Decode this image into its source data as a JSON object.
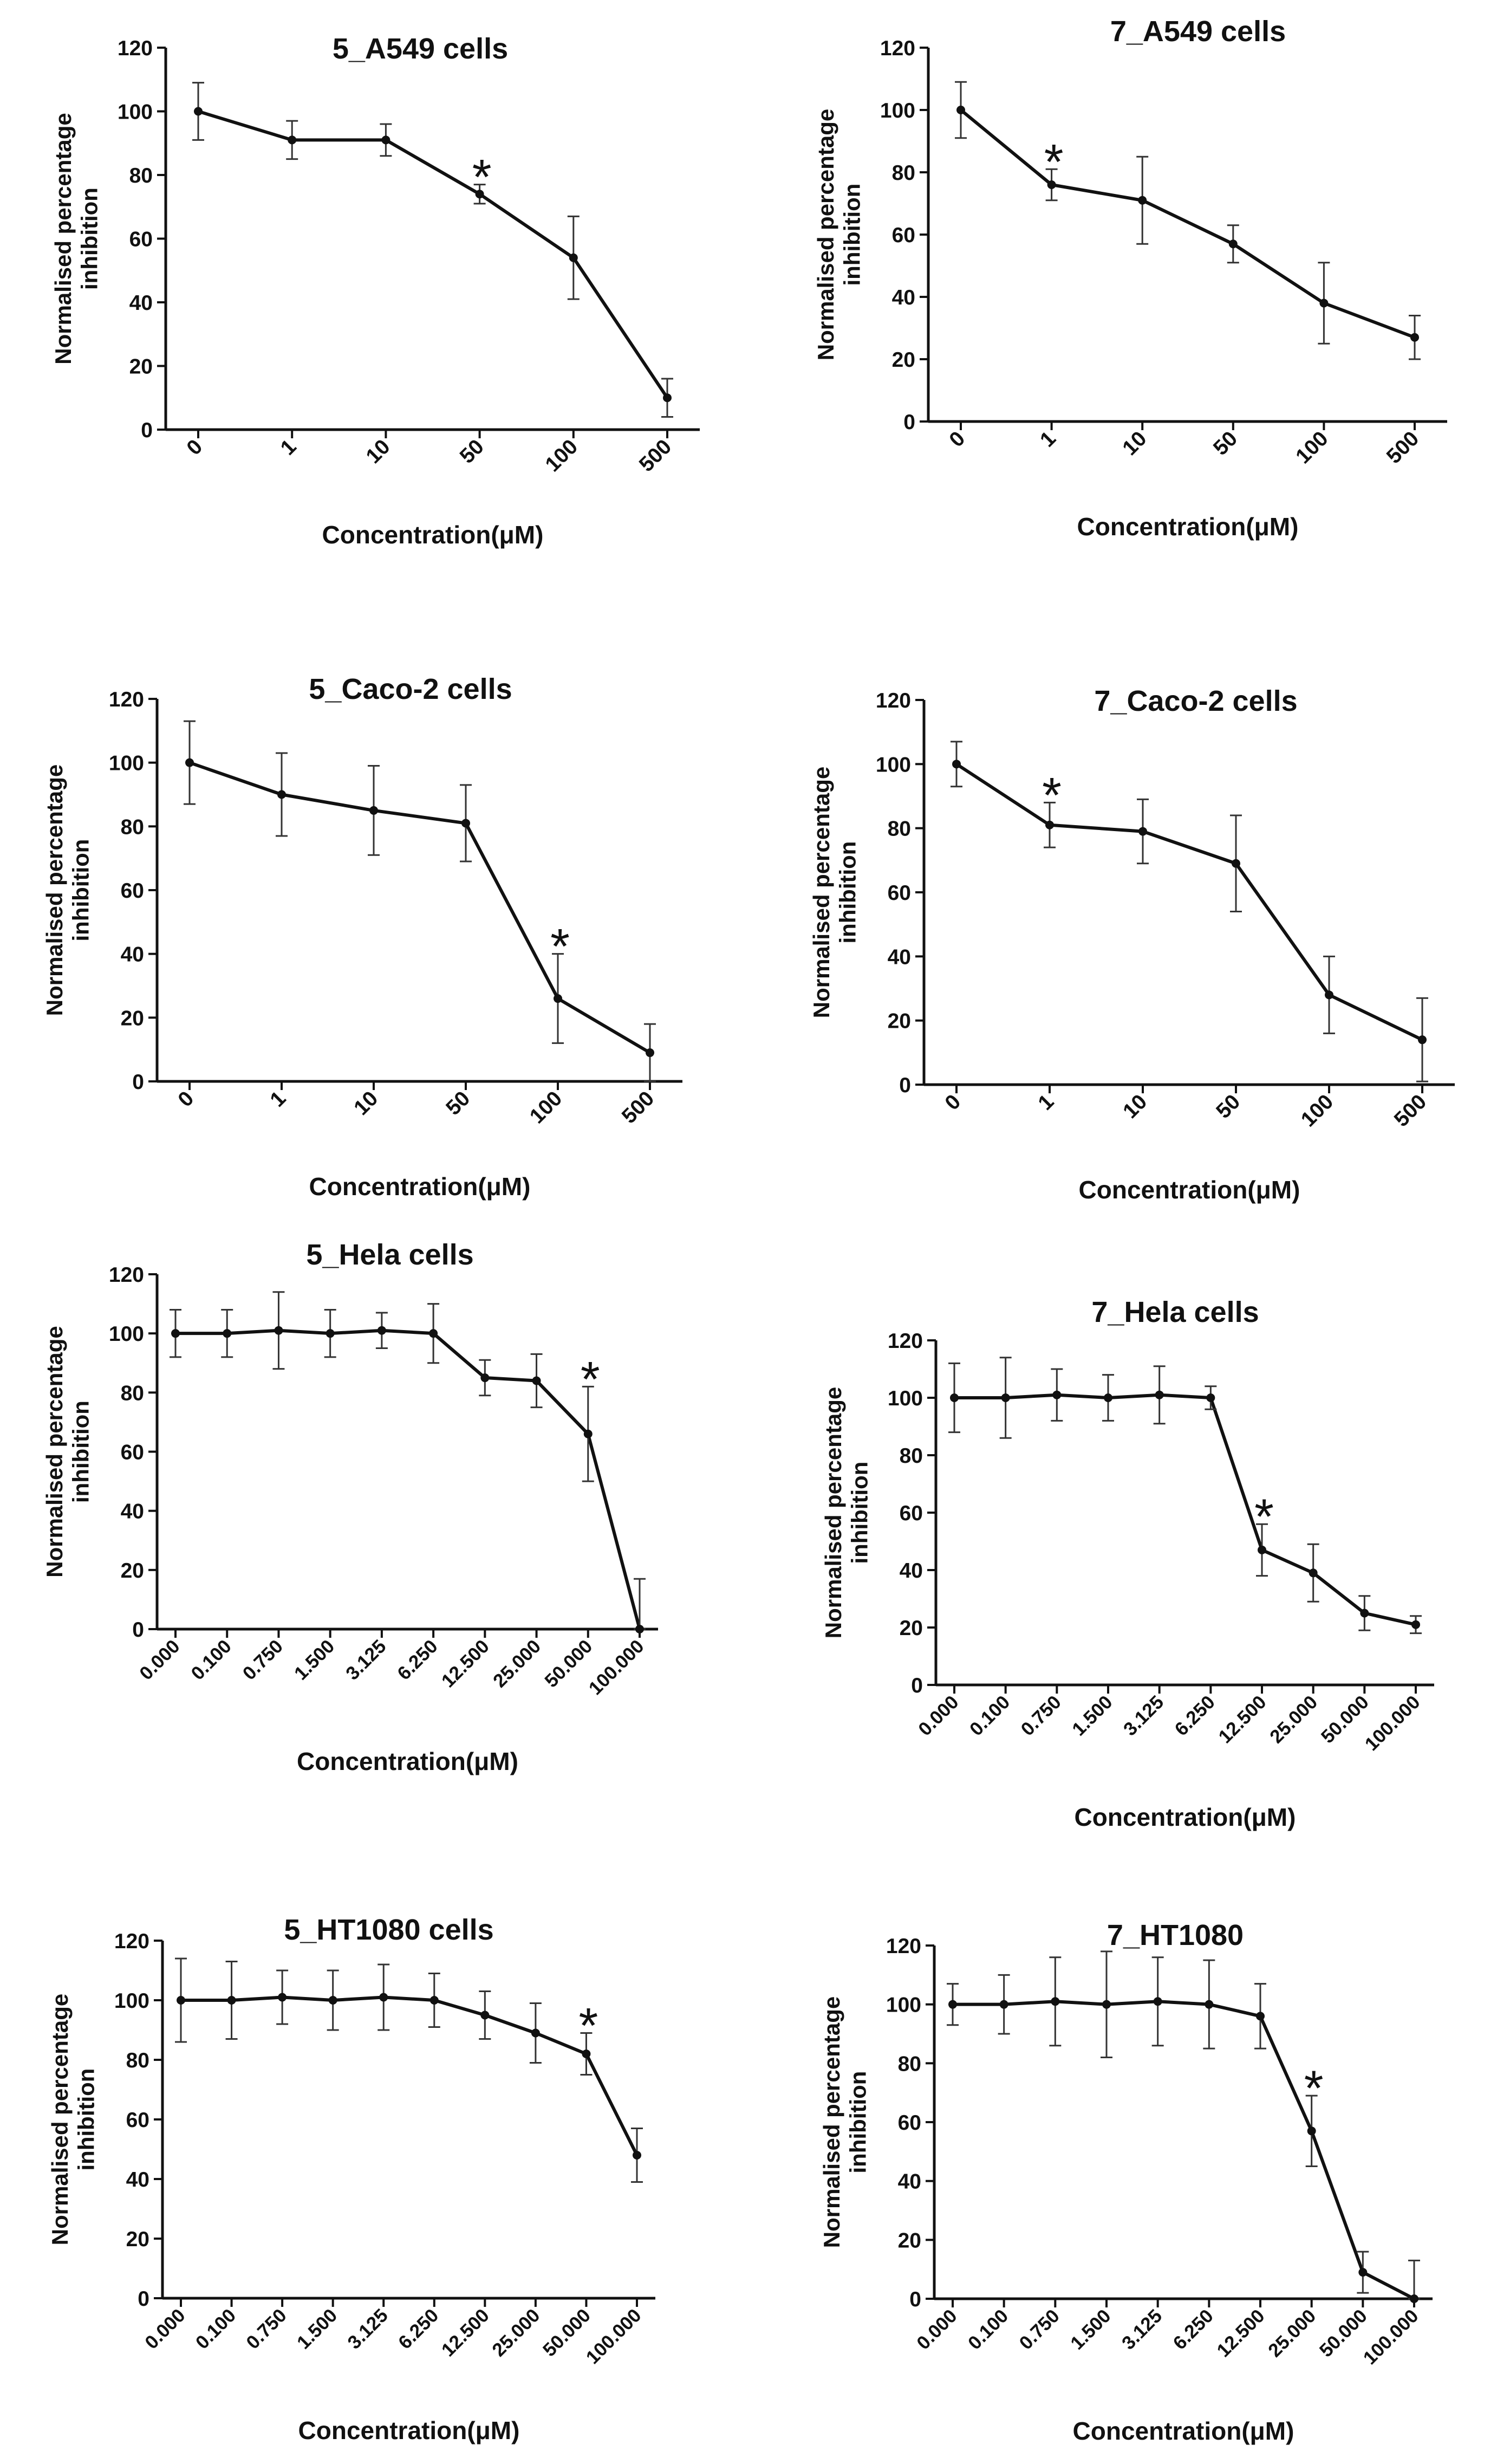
{
  "colors": {
    "line": "#111111",
    "errorbar": "#333333",
    "background": "#ffffff"
  },
  "chart_data": [
    {
      "type": "line",
      "title": "5_A549 cells",
      "xlabel": "Concentration(μM)",
      "ylabel": [
        "Normalised percentage",
        "inhibition"
      ],
      "ylim": [
        0,
        120
      ],
      "yticks": [
        0,
        20,
        40,
        60,
        80,
        100,
        120
      ],
      "categories": [
        "0",
        "1",
        "10",
        "50",
        "100",
        "500"
      ],
      "series": [
        {
          "values": [
            100,
            91,
            91,
            74,
            54,
            10
          ],
          "errors": [
            9,
            6,
            5,
            3,
            13,
            6
          ]
        }
      ],
      "significance": {
        "marker": "*",
        "category": "50"
      }
    },
    {
      "type": "line",
      "title": "7_A549 cells",
      "xlabel": "Concentration(μM)",
      "ylabel": [
        "Normalised percentage",
        "inhibition"
      ],
      "ylim": [
        0,
        120
      ],
      "yticks": [
        0,
        20,
        40,
        60,
        80,
        100,
        120
      ],
      "categories": [
        "0",
        "1",
        "10",
        "50",
        "100",
        "500"
      ],
      "series": [
        {
          "values": [
            100,
            76,
            71,
            57,
            38,
            27
          ],
          "errors": [
            9,
            5,
            14,
            6,
            13,
            7
          ]
        }
      ],
      "significance": {
        "marker": "*",
        "category": "1"
      }
    },
    {
      "type": "line",
      "title": "5_Caco-2 cells",
      "xlabel": "Concentration(μM)",
      "ylabel": [
        "Normalised percentage",
        "inhibition"
      ],
      "ylim": [
        0,
        120
      ],
      "yticks": [
        0,
        20,
        40,
        60,
        80,
        100,
        120
      ],
      "categories": [
        "0",
        "1",
        "10",
        "50",
        "100",
        "500"
      ],
      "series": [
        {
          "values": [
            100,
            90,
            85,
            81,
            26,
            9
          ],
          "errors": [
            13,
            13,
            14,
            12,
            14,
            9
          ]
        }
      ],
      "significance": {
        "marker": "*",
        "category": "100"
      }
    },
    {
      "type": "line",
      "title": "7_Caco-2 cells",
      "xlabel": "Concentration(μM)",
      "ylabel": [
        "Normalised percentage",
        "inhibition"
      ],
      "ylim": [
        0,
        120
      ],
      "yticks": [
        0,
        20,
        40,
        60,
        80,
        100,
        120
      ],
      "categories": [
        "0",
        "1",
        "10",
        "50",
        "100",
        "500"
      ],
      "series": [
        {
          "values": [
            100,
            81,
            79,
            69,
            28,
            14
          ],
          "errors": [
            7,
            7,
            10,
            15,
            12,
            13
          ]
        }
      ],
      "significance": {
        "marker": "*",
        "category": "1"
      }
    },
    {
      "type": "line",
      "title": "5_Hela cells",
      "xlabel": "Concentration(μM)",
      "ylabel": [
        "Normalised percentage",
        "inhibition"
      ],
      "ylim": [
        0,
        120
      ],
      "yticks": [
        0,
        20,
        40,
        60,
        80,
        100,
        120
      ],
      "categories": [
        "0.000",
        "0.100",
        "0.750",
        "1.500",
        "3.125",
        "6.250",
        "12.500",
        "25.000",
        "50.000",
        "100.000"
      ],
      "series": [
        {
          "values": [
            100,
            100,
            101,
            100,
            101,
            100,
            85,
            84,
            66,
            0
          ],
          "errors": [
            8,
            8,
            13,
            8,
            6,
            10,
            6,
            9,
            16,
            17
          ]
        }
      ],
      "significance": {
        "marker": "*",
        "category": "50.000"
      }
    },
    {
      "type": "line",
      "title": "7_Hela cells",
      "xlabel": "Concentration(μM)",
      "ylabel": [
        "Normalised percentage",
        "inhibition"
      ],
      "ylim": [
        0,
        120
      ],
      "yticks": [
        0,
        20,
        40,
        60,
        80,
        100,
        120
      ],
      "categories": [
        "0.000",
        "0.100",
        "0.750",
        "1.500",
        "3.125",
        "6.250",
        "12.500",
        "25.000",
        "50.000",
        "100.000"
      ],
      "series": [
        {
          "values": [
            100,
            100,
            101,
            100,
            101,
            100,
            47,
            39,
            25,
            21
          ],
          "errors": [
            12,
            14,
            9,
            8,
            10,
            4,
            9,
            10,
            6,
            3
          ]
        }
      ],
      "significance": {
        "marker": "*",
        "category": "12.500"
      }
    },
    {
      "type": "line",
      "title": "5_HT1080 cells",
      "xlabel": "Concentration(μM)",
      "ylabel": [
        "Normalised percentage",
        "inhibition"
      ],
      "ylim": [
        0,
        120
      ],
      "yticks": [
        0,
        20,
        40,
        60,
        80,
        100,
        120
      ],
      "categories": [
        "0.000",
        "0.100",
        "0.750",
        "1.500",
        "3.125",
        "6.250",
        "12.500",
        "25.000",
        "50.000",
        "100.000"
      ],
      "series": [
        {
          "values": [
            100,
            100,
            101,
            100,
            101,
            100,
            95,
            89,
            82,
            48
          ],
          "errors": [
            14,
            13,
            9,
            10,
            11,
            9,
            8,
            10,
            7,
            9
          ]
        }
      ],
      "significance": {
        "marker": "*",
        "category": "50.000"
      }
    },
    {
      "type": "line",
      "title": "7_HT1080",
      "xlabel": "Concentration(μM)",
      "ylabel": [
        "Normalised percentage",
        "inhibition"
      ],
      "ylim": [
        0,
        120
      ],
      "yticks": [
        0,
        20,
        40,
        60,
        80,
        100,
        120
      ],
      "categories": [
        "0.000",
        "0.100",
        "0.750",
        "1.500",
        "3.125",
        "6.250",
        "12.500",
        "25.000",
        "50.000",
        "100.000"
      ],
      "series": [
        {
          "values": [
            100,
            100,
            101,
            100,
            101,
            100,
            96,
            57,
            9,
            0
          ],
          "errors": [
            7,
            10,
            15,
            18,
            15,
            15,
            11,
            12,
            7,
            13
          ]
        }
      ],
      "significance": {
        "marker": "*",
        "category": "25.000"
      }
    }
  ]
}
